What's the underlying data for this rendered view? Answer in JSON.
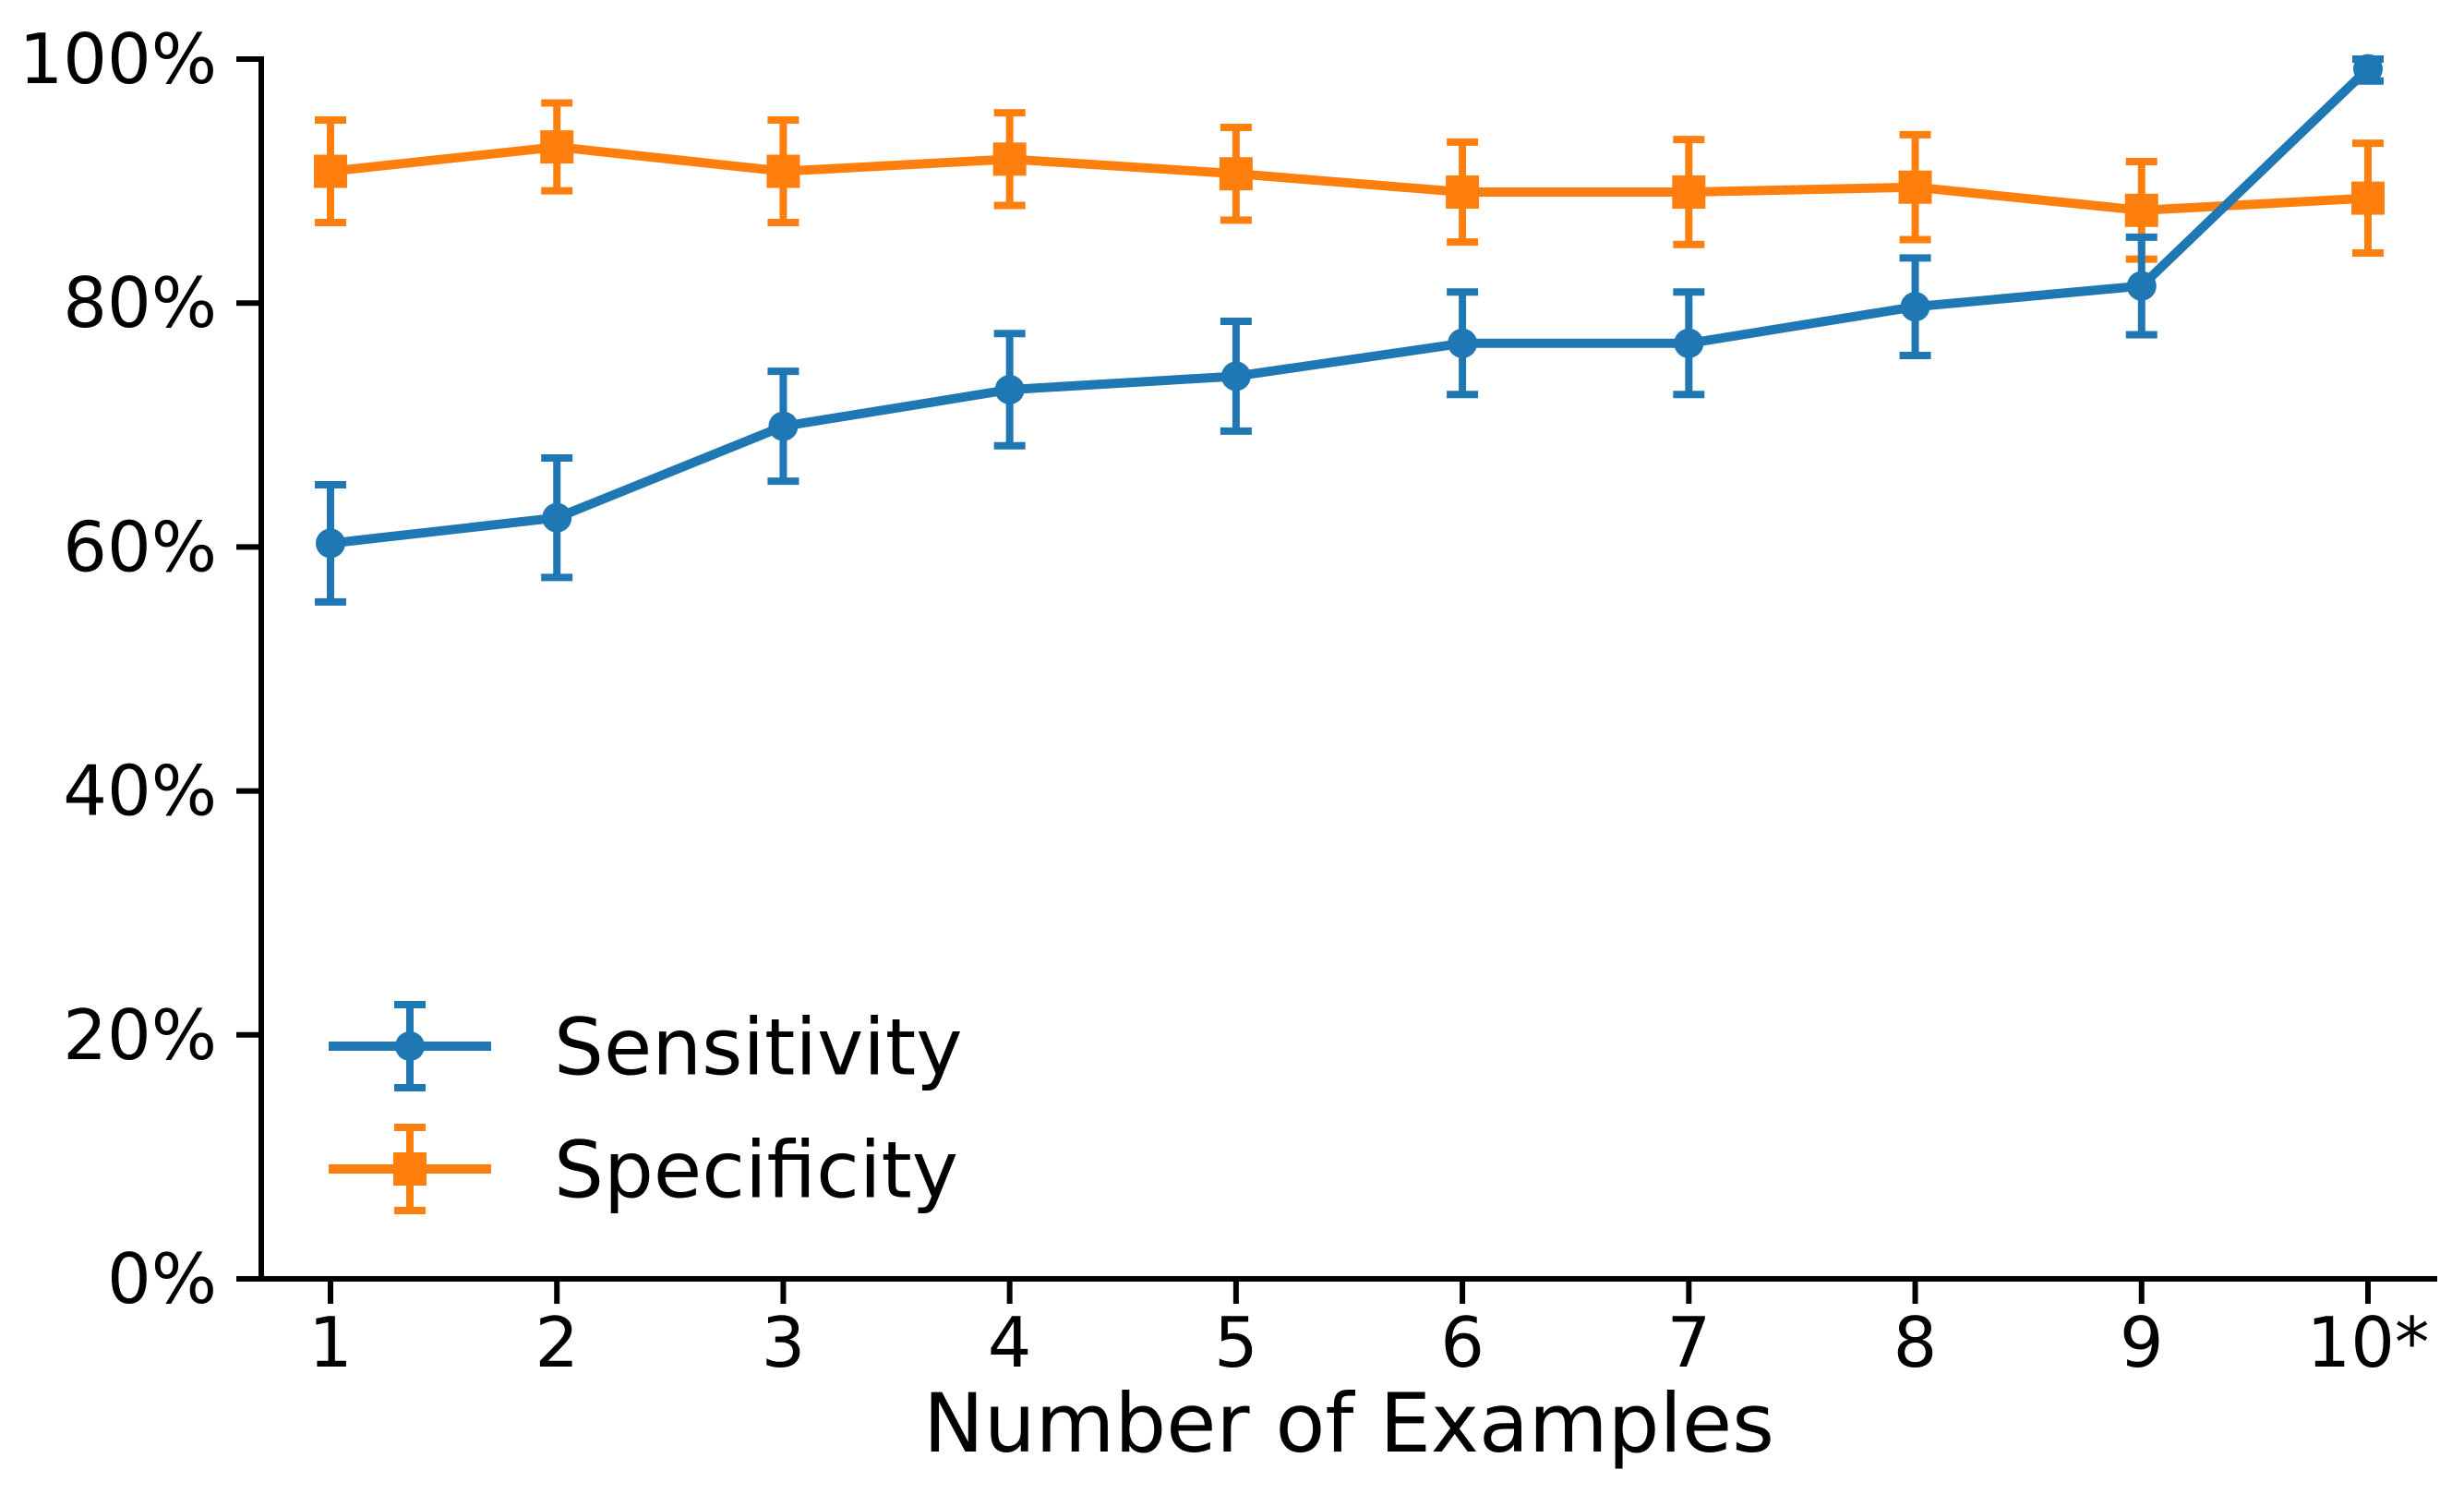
{
  "chart_data": {
    "type": "line",
    "title": "",
    "xlabel": "Number of Examples",
    "ylabel": "",
    "x_tick_labels": [
      "1",
      "2",
      "3",
      "4",
      "5",
      "6",
      "7",
      "8",
      "9",
      "10*"
    ],
    "y_tick_labels": [
      "0%",
      "20%",
      "40%",
      "60%",
      "80%",
      "100%"
    ],
    "y_tick_values": [
      0,
      20,
      40,
      60,
      80,
      100
    ],
    "ylim": [
      0,
      100
    ],
    "grid": false,
    "legend_position": "lower left",
    "background_color": "#ffffff",
    "axis_color": "#000000",
    "units": "percent",
    "series": [
      {
        "name": "Sensitivity",
        "marker": "circle",
        "color": "#1f77b4",
        "values": [
          60.3,
          62.4,
          69.9,
          72.9,
          74.0,
          76.7,
          76.7,
          79.7,
          81.4,
          99.2
        ],
        "errors": [
          4.8,
          4.9,
          4.5,
          4.6,
          4.5,
          4.2,
          4.2,
          4.0,
          4.0,
          1.0
        ]
      },
      {
        "name": "Specificity",
        "marker": "square",
        "color": "#ff7f0e",
        "values": [
          90.8,
          92.8,
          90.8,
          91.8,
          90.6,
          89.1,
          89.1,
          89.5,
          87.6,
          88.6
        ],
        "errors": [
          4.2,
          3.6,
          4.2,
          3.8,
          3.8,
          4.1,
          4.3,
          4.3,
          4.0,
          4.5
        ]
      }
    ]
  }
}
